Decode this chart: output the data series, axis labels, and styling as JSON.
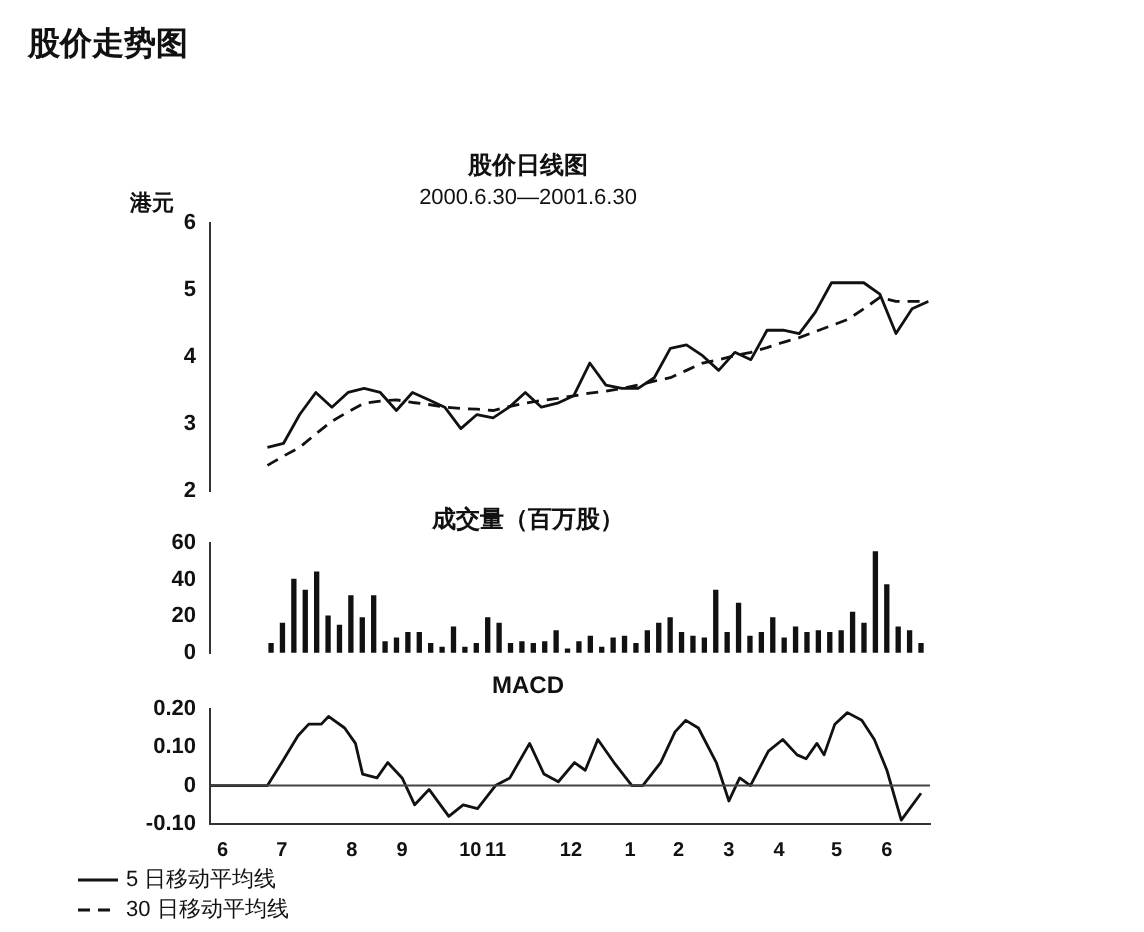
{
  "chart_data": [
    {
      "type": "line",
      "title": "股价日线图",
      "subtitle": "2000.6.30—2001.6.30",
      "ylabel": "港元",
      "annotations": [
        "股价走势图"
      ],
      "ylim": [
        2,
        6
      ],
      "yticks": [
        2,
        3,
        4,
        5,
        6
      ],
      "tick_labels": "y",
      "grid": false,
      "legend": "bottom left",
      "marker": "none",
      "categories": [
        null,
        null,
        null,
        null,
        null,
        null,
        null,
        null,
        null,
        null,
        null,
        null,
        null,
        null,
        null,
        null,
        null,
        null,
        null,
        null,
        null,
        null,
        null,
        null,
        null,
        null,
        null,
        null,
        null,
        null,
        null,
        null,
        null,
        null,
        null,
        null,
        null,
        null,
        null,
        null,
        null,
        null
      ],
      "series": [
        {
          "name": "5 日移动平均线",
          "color": "#111111",
          "line_style": "solid",
          "values": [
            2.65,
            2.71,
            3.14,
            3.47,
            3.25,
            3.47,
            3.53,
            3.47,
            3.2,
            3.47,
            3.36,
            3.25,
            2.93,
            3.14,
            3.09,
            3.25,
            3.47,
            3.25,
            3.31,
            3.42,
            3.91,
            3.58,
            3.53,
            3.53,
            3.69,
            4.13,
            4.18,
            4.02,
            3.8,
            4.07,
            3.96,
            4.4,
            4.4,
            4.35,
            4.67,
            5.11,
            5.11,
            5.11,
            4.94,
            4.35,
            4.72,
            4.83
          ]
        },
        {
          "name": "30 日移动平均线",
          "color": "#111111",
          "line_style": "dashed",
          "values": [
            2.38,
            2.52,
            2.65,
            2.85,
            3.04,
            3.18,
            3.31,
            3.34,
            3.36,
            3.32,
            3.29,
            3.25,
            3.23,
            3.22,
            3.2,
            3.26,
            3.31,
            3.35,
            3.38,
            3.42,
            3.46,
            3.49,
            3.53,
            3.58,
            3.64,
            3.69,
            3.8,
            3.91,
            3.96,
            4.02,
            4.07,
            4.14,
            4.22,
            4.29,
            4.38,
            4.47,
            4.56,
            4.72,
            4.89,
            4.83,
            4.83,
            4.83
          ]
        }
      ]
    },
    {
      "type": "bar",
      "title": "成交量（百万股）",
      "ylim": [
        0,
        60
      ],
      "yticks": [
        0,
        20,
        40,
        60
      ],
      "tick_labels": "y",
      "grid": false,
      "color": "#111111",
      "categories": [
        null,
        null,
        null,
        null,
        null,
        null,
        null,
        null,
        null,
        null,
        null,
        null,
        null,
        null,
        null,
        null,
        null,
        null,
        null,
        null,
        null,
        null,
        null,
        null,
        null,
        null,
        null,
        null,
        null,
        null,
        null,
        null,
        null,
        null,
        null,
        null,
        null,
        null,
        null,
        null,
        null,
        null,
        null,
        null,
        null,
        null,
        null,
        null,
        null,
        null,
        null,
        null,
        null,
        null,
        null,
        null,
        null,
        null
      ],
      "values": [
        5,
        16,
        40,
        34,
        44,
        20,
        15,
        31,
        19,
        31,
        6,
        8,
        11,
        11,
        5,
        3,
        14,
        3,
        5,
        19,
        16,
        5,
        6,
        5,
        6,
        12,
        2,
        6,
        9,
        3,
        8,
        9,
        5,
        12,
        16,
        19,
        11,
        9,
        8,
        34,
        11,
        27,
        9,
        11,
        19,
        8,
        14,
        11,
        12,
        11,
        12,
        22,
        16,
        55,
        37,
        14,
        12,
        5
      ]
    },
    {
      "type": "line",
      "title": "MACD",
      "xlim": [
        "2000-06-01",
        "2001-07-07"
      ],
      "ylim": [
        -0.1,
        0.2
      ],
      "yticks": [
        {
          "value": -0.1,
          "label": "-0.10"
        },
        0,
        {
          "value": 0.1,
          "label": "0.10"
        },
        {
          "value": 0.2,
          "label": "0.20"
        }
      ],
      "xticks": [
        {
          "value": "2000-06-08",
          "label": "6"
        },
        {
          "value": "2000-07-11",
          "label": "7"
        },
        {
          "value": "2000-08-19",
          "label": "8"
        },
        {
          "value": "2000-09-16",
          "label": "9"
        },
        {
          "value": "2000-10-24",
          "label": "10"
        },
        {
          "value": "2000-11-07",
          "label": "11"
        },
        {
          "value": "2000-12-19",
          "label": "12"
        },
        {
          "value": "2001-01-21",
          "label": "1"
        },
        {
          "value": "2001-02-17",
          "label": "2"
        },
        {
          "value": "2001-03-17",
          "label": "3"
        },
        {
          "value": "2001-04-14",
          "label": "4"
        },
        {
          "value": "2001-05-16",
          "label": "5"
        },
        {
          "value": "2001-06-13",
          "label": "6"
        }
      ],
      "grid": false,
      "marker": "none",
      "ref_lines": [
        {
          "axis": "y",
          "value": 0,
          "color": "#444444"
        }
      ],
      "color": "#111111",
      "x": [
        "2000-06-01",
        "2000-07-03",
        "2000-07-11",
        "2000-07-20",
        "2000-07-26",
        "2000-08-02",
        "2000-08-06",
        "2000-08-15",
        "2000-08-21",
        "2000-08-25",
        "2000-09-02",
        "2000-09-08",
        "2000-09-16",
        "2000-09-23",
        "2000-10-01",
        "2000-10-12",
        "2000-10-20",
        "2000-10-28",
        "2000-11-07",
        "2000-11-15",
        "2000-11-26",
        "2000-12-04",
        "2000-12-12",
        "2000-12-21",
        "2000-12-27",
        "2001-01-03",
        "2001-01-12",
        "2001-01-22",
        "2001-01-28",
        "2001-02-07",
        "2001-02-15",
        "2001-02-21",
        "2001-02-28",
        "2001-03-10",
        "2001-03-17",
        "2001-03-23",
        "2001-03-29",
        "2001-04-08",
        "2001-04-16",
        "2001-04-24",
        "2001-04-29",
        "2001-05-05",
        "2001-05-09",
        "2001-05-15",
        "2001-05-22",
        "2001-05-30",
        "2001-06-06",
        "2001-06-13",
        "2001-06-21",
        "2001-07-02"
      ],
      "values": [
        0,
        0,
        0.06,
        0.13,
        0.16,
        0.16,
        0.18,
        0.15,
        0.11,
        0.03,
        0.02,
        0.06,
        0.02,
        -0.05,
        -0.01,
        -0.08,
        -0.05,
        -0.06,
        0,
        0.02,
        0.11,
        0.03,
        0.01,
        0.06,
        0.04,
        0.12,
        0.06,
        0,
        0,
        0.06,
        0.14,
        0.17,
        0.15,
        0.06,
        -0.04,
        0.02,
        0,
        0.09,
        0.12,
        0.08,
        0.07,
        0.11,
        0.08,
        0.16,
        0.19,
        0.17,
        0.12,
        0.04,
        -0.09,
        -0.02
      ]
    }
  ]
}
